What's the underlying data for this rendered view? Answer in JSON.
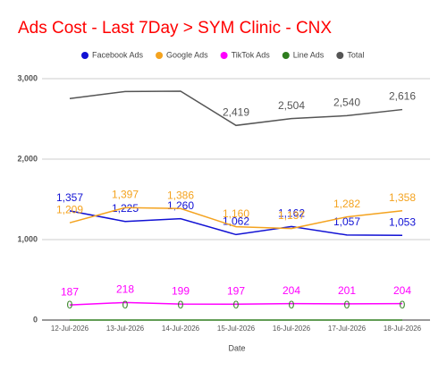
{
  "chart_data": {
    "type": "line",
    "title": "Ads Cost - Last 7Day > SYM Clinic - CNX",
    "x_label": "Date",
    "categories": [
      "12-Jul-2026",
      "13-Jul-2026",
      "14-Jul-2026",
      "15-Jul-2026",
      "16-Jul-2026",
      "17-Jul-2026",
      "18-Jul-2026"
    ],
    "ylim": [
      0,
      3000
    ],
    "yticks": [
      0,
      {
        "value": 1000,
        "label": "1,000"
      },
      {
        "value": 2000,
        "label": "2,000"
      },
      {
        "value": 3000,
        "label": "3,000"
      }
    ],
    "grid": true,
    "legend": "top",
    "series": [
      {
        "name": "Facebook Ads",
        "color": "#1111d4",
        "values": [
          1357,
          1225,
          1260,
          1062,
          1162,
          1057,
          1053
        ],
        "value_labels": [
          "1,357",
          "1,225",
          "1,260",
          "1,062",
          "1,162",
          "1,057",
          "1,053"
        ]
      },
      {
        "name": "Google Ads",
        "color": "#f4a31f",
        "values": [
          1209,
          1397,
          1386,
          1160,
          1137,
          1282,
          1358
        ],
        "value_labels": [
          "1,209",
          "1,397",
          "1,386",
          "1,160",
          "1,137",
          "1,282",
          "1,358"
        ]
      },
      {
        "name": "TikTok Ads",
        "color": "#ff00ff",
        "values": [
          187,
          218,
          199,
          197,
          204,
          201,
          204
        ]
      },
      {
        "name": "Line Ads",
        "color": "#2e7d1e",
        "values": [
          0,
          0,
          0,
          0,
          0,
          0,
          0
        ]
      },
      {
        "name": "Total",
        "color": "#555555",
        "values": [
          2753,
          2840,
          2845,
          2419,
          2504,
          2540,
          2616
        ],
        "value_labels": [
          null,
          null,
          null,
          "2,419",
          "2,504",
          "2,540",
          "2,616"
        ]
      }
    ]
  }
}
